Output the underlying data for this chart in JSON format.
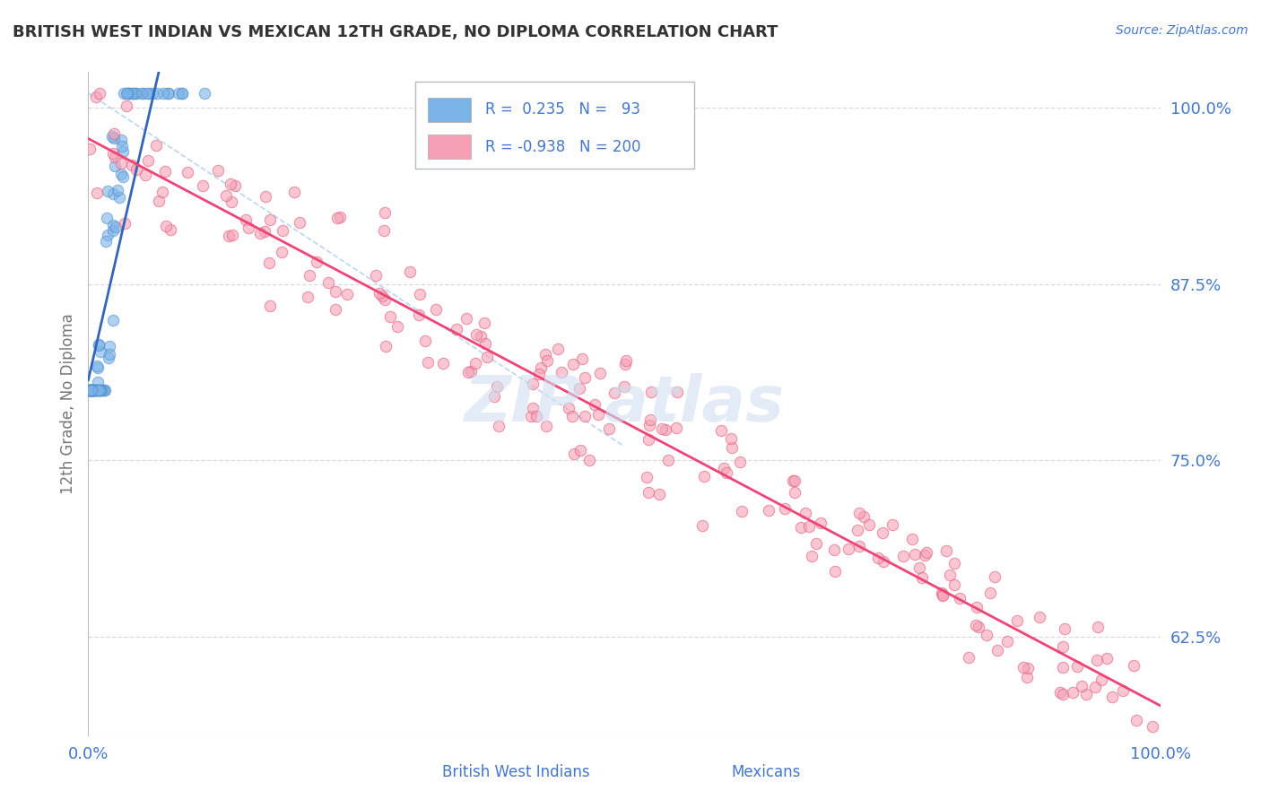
{
  "title": "BRITISH WEST INDIAN VS MEXICAN 12TH GRADE, NO DIPLOMA CORRELATION CHART",
  "source": "Source: ZipAtlas.com",
  "ylabel": "12th Grade, No Diploma",
  "xlim": [
    0.0,
    1.0
  ],
  "ylim": [
    0.555,
    1.025
  ],
  "yticks": [
    0.625,
    0.75,
    0.875,
    1.0
  ],
  "ytick_labels": [
    "62.5%",
    "75.0%",
    "87.5%",
    "100.0%"
  ],
  "xticks": [
    0.0,
    1.0
  ],
  "xtick_labels": [
    "0.0%",
    "100.0%"
  ],
  "blue_R": 0.235,
  "blue_N": 93,
  "pink_R": -0.938,
  "pink_N": 200,
  "blue_color": "#7ab3e8",
  "blue_edge_color": "#5590cc",
  "pink_color": "#f5a0b5",
  "pink_edge_color": "#e06080",
  "blue_line_color": "#3366bb",
  "pink_line_color": "#ee4477",
  "ref_line_color": "#aaccee",
  "legend_text_color": "#4477cc",
  "title_color": "#333333",
  "grid_color": "#cccccc",
  "background_color": "#ffffff",
  "watermark_color": "#d0dff0",
  "ylabel_color": "#777777",
  "blue_seed": 42,
  "pink_seed": 7
}
